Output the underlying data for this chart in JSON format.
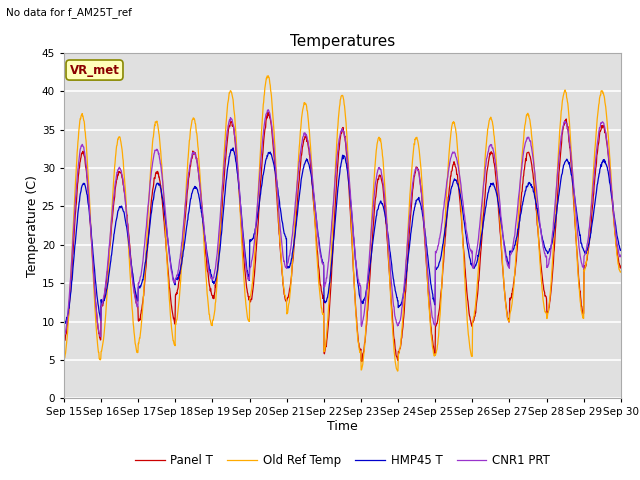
{
  "title": "Temperatures",
  "xlabel": "Time",
  "ylabel": "Temperature (C)",
  "top_left_text": "No data for f_AM25T_ref",
  "annotation_text": "VR_met",
  "ylim": [
    0,
    45
  ],
  "x_tick_labels": [
    "Sep 15",
    "Sep 16",
    "Sep 17",
    "Sep 18",
    "Sep 19",
    "Sep 20",
    "Sep 21",
    "Sep 22",
    "Sep 23",
    "Sep 24",
    "Sep 25",
    "Sep 26",
    "Sep 27",
    "Sep 28",
    "Sep 29",
    "Sep 30"
  ],
  "legend_labels": [
    "Panel T",
    "Old Ref Temp",
    "HMP45 T",
    "CNR1 PRT"
  ],
  "colors": [
    "#cc0000",
    "#ffaa00",
    "#0000cc",
    "#9933cc"
  ],
  "background_color": "#e0e0e0",
  "grid_color": "#ffffff",
  "title_fontsize": 11,
  "axis_fontsize": 9,
  "tick_fontsize": 7.5,
  "num_points_per_day": 96,
  "daily_max_panel": [
    32,
    29.5,
    29.5,
    32,
    36,
    37,
    34,
    35,
    29,
    30,
    30.5,
    32,
    32,
    36,
    35.5
  ],
  "daily_max_oldref": [
    37,
    34,
    36,
    36.5,
    40,
    42,
    38.5,
    39.5,
    34,
    34,
    36,
    36.5,
    37,
    40,
    40
  ],
  "daily_max_hmp45": [
    28,
    25,
    28,
    27.5,
    32.5,
    32,
    31,
    31.5,
    25.5,
    26,
    28.5,
    28,
    28,
    31,
    31
  ],
  "daily_max_cnr1": [
    33,
    30,
    32.5,
    32,
    36.5,
    37.5,
    34.5,
    35,
    30,
    30,
    32,
    33,
    34,
    36,
    36
  ],
  "daily_min_panel": [
    7.5,
    12,
    10,
    13.5,
    13,
    12.5,
    13,
    6,
    5,
    6,
    9.5,
    10,
    13,
    11,
    17
  ],
  "daily_min_oldref": [
    5,
    6,
    7,
    9.5,
    10,
    13,
    11,
    6,
    3.5,
    5.5,
    5.5,
    10,
    11,
    10.5,
    16.5
  ],
  "daily_min_hmp45": [
    10,
    12.5,
    14.5,
    15.5,
    15,
    20.5,
    17,
    12.5,
    12.5,
    12,
    17,
    17,
    19,
    19,
    19
  ],
  "daily_min_cnr1": [
    8,
    12,
    15,
    15.5,
    15.5,
    17,
    17.5,
    14.5,
    9.5,
    9.5,
    19,
    17,
    18.5,
    17,
    18.5
  ]
}
